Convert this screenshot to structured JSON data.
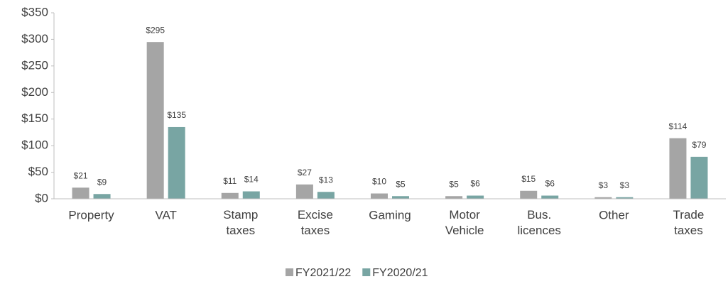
{
  "chart_data": {
    "type": "bar",
    "categories": [
      "Property",
      "VAT",
      "Stamp taxes",
      "Excise taxes",
      "Gaming",
      "Motor Vehicle",
      "Bus. licences",
      "Other",
      "Trade taxes"
    ],
    "series": [
      {
        "name": "FY2021/22",
        "color": "#a5a5a5",
        "values": [
          21,
          295,
          11,
          27,
          10,
          5,
          15,
          3,
          114
        ],
        "value_labels": [
          "$21",
          "$295",
          "$11",
          "$27",
          "$10",
          "$5",
          "$15",
          "$3",
          "$114"
        ]
      },
      {
        "name": "FY2020/21",
        "color": "#78a5a3",
        "values": [
          9,
          135,
          14,
          13,
          5,
          6,
          6,
          3,
          79
        ],
        "value_labels": [
          "$9",
          "$135",
          "$14",
          "$13",
          "$5",
          "$6",
          "$6",
          "$3",
          "$79"
        ]
      }
    ],
    "ylim": [
      0,
      350
    ],
    "yticks": [
      {
        "value": 0,
        "label": "$0"
      },
      {
        "value": 50,
        "label": "$50"
      },
      {
        "value": 100,
        "label": "$100"
      },
      {
        "value": 150,
        "label": "$150"
      },
      {
        "value": 200,
        "label": "$200"
      },
      {
        "value": 250,
        "label": "$250"
      },
      {
        "value": 300,
        "label": "$300"
      },
      {
        "value": 350,
        "label": "$350"
      }
    ],
    "legend": "bottom"
  }
}
